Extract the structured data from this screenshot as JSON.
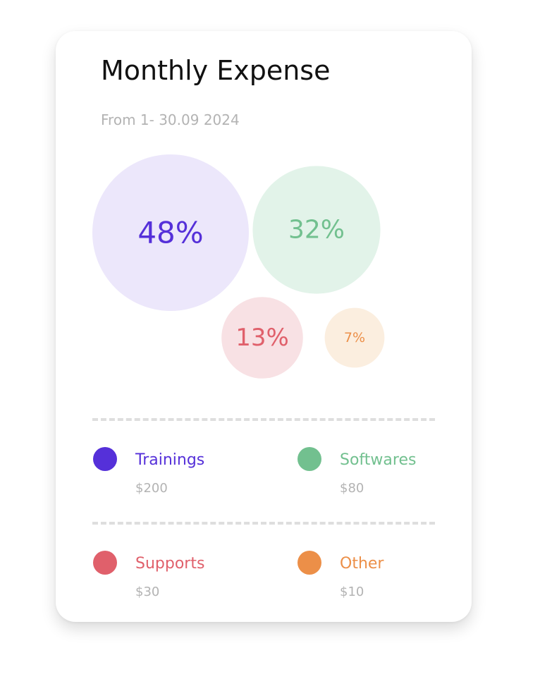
{
  "card": {
    "title": "Monthly Expense",
    "subtitle": "From 1- 30.09 2024"
  },
  "chart_data": {
    "type": "bubble",
    "categories": [
      "Trainings",
      "Softwares",
      "Supports",
      "Other"
    ],
    "percent_labels": [
      "48%",
      "32%",
      "13%",
      "7%"
    ],
    "values": [
      48,
      32,
      13,
      7
    ],
    "amount_labels": [
      "$200",
      "$80",
      "$30",
      "$10"
    ],
    "amounts": [
      200,
      80,
      30,
      10
    ],
    "colors": [
      "#5530d9",
      "#72c08f",
      "#e0606b",
      "#ec8f48"
    ],
    "fill_colors": [
      "#ece7fb",
      "#e2f3e9",
      "#f8e1e4",
      "#fbeedf"
    ]
  },
  "legend": {
    "items": [
      {
        "label": "Trainings",
        "amount": "$200",
        "color": "#5530d9",
        "icon": "dot-icon"
      },
      {
        "label": "Softwares",
        "amount": "$80",
        "color": "#72c08f",
        "icon": "dot-icon"
      },
      {
        "label": "Supports",
        "amount": "$30",
        "color": "#e0606b",
        "icon": "dot-icon"
      },
      {
        "label": "Other",
        "amount": "$10",
        "color": "#ec8f48",
        "icon": "dot-icon"
      }
    ]
  }
}
